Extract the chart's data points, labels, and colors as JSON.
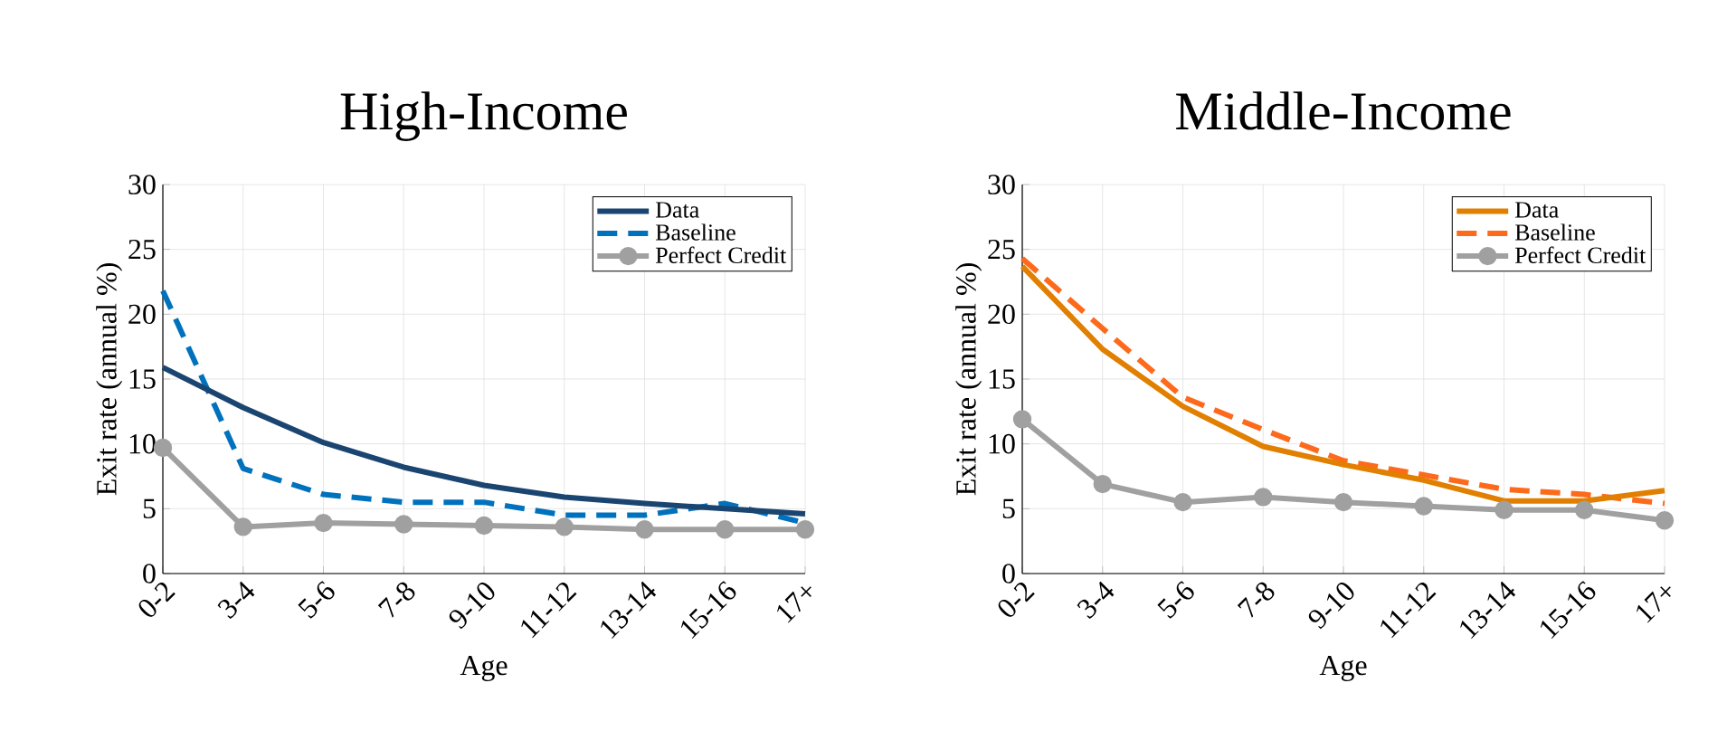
{
  "chart_data": [
    {
      "type": "line",
      "title": "High-Income",
      "xlabel": "Age",
      "ylabel": "Exit rate (annual %)",
      "categories": [
        "0-2",
        "3-4",
        "5-6",
        "7-8",
        "9-10",
        "11-12",
        "13-14",
        "15-16",
        "17+"
      ],
      "series": [
        {
          "name": "Data",
          "color": "#1b4571",
          "line_style": "solid",
          "marker": "none",
          "values": [
            15.9,
            12.8,
            10.1,
            8.2,
            6.8,
            5.9,
            5.4,
            5.0,
            4.6
          ]
        },
        {
          "name": "Baseline",
          "color": "#0072bd",
          "line_style": "dashed",
          "marker": "none",
          "values": [
            21.8,
            8.1,
            6.1,
            5.5,
            5.5,
            4.5,
            4.5,
            5.4,
            3.9
          ]
        },
        {
          "name": "Perfect Credit",
          "color": "#a0a0a0",
          "line_style": "solid",
          "marker": "circle",
          "values": [
            9.7,
            3.6,
            3.9,
            3.8,
            3.7,
            3.6,
            3.4,
            3.4,
            3.4
          ]
        }
      ],
      "ylim": [
        0,
        30
      ],
      "yticks": [
        0,
        5,
        10,
        15,
        20,
        25,
        30
      ],
      "grid": true,
      "legend": "top right"
    },
    {
      "type": "line",
      "title": "Middle-Income",
      "xlabel": "Age",
      "ylabel": "Exit rate (annual %)",
      "categories": [
        "0-2",
        "3-4",
        "5-6",
        "7-8",
        "9-10",
        "11-12",
        "13-14",
        "15-16",
        "17+"
      ],
      "series": [
        {
          "name": "Data",
          "color": "#e17f00",
          "line_style": "solid",
          "marker": "none",
          "values": [
            23.7,
            17.3,
            12.9,
            9.8,
            8.4,
            7.2,
            5.6,
            5.6,
            6.4
          ]
        },
        {
          "name": "Baseline",
          "color": "#fd6a1c",
          "line_style": "dashed",
          "marker": "none",
          "values": [
            24.3,
            18.9,
            13.6,
            11.1,
            8.7,
            7.6,
            6.5,
            6.1,
            5.4
          ]
        },
        {
          "name": "Perfect Credit",
          "color": "#a0a0a0",
          "line_style": "solid",
          "marker": "circle",
          "values": [
            11.9,
            6.9,
            5.5,
            5.9,
            5.5,
            5.2,
            4.9,
            4.9,
            4.1
          ]
        }
      ],
      "ylim": [
        0,
        30
      ],
      "yticks": [
        0,
        5,
        10,
        15,
        20,
        25,
        30
      ],
      "grid": true,
      "legend": "top right"
    }
  ]
}
